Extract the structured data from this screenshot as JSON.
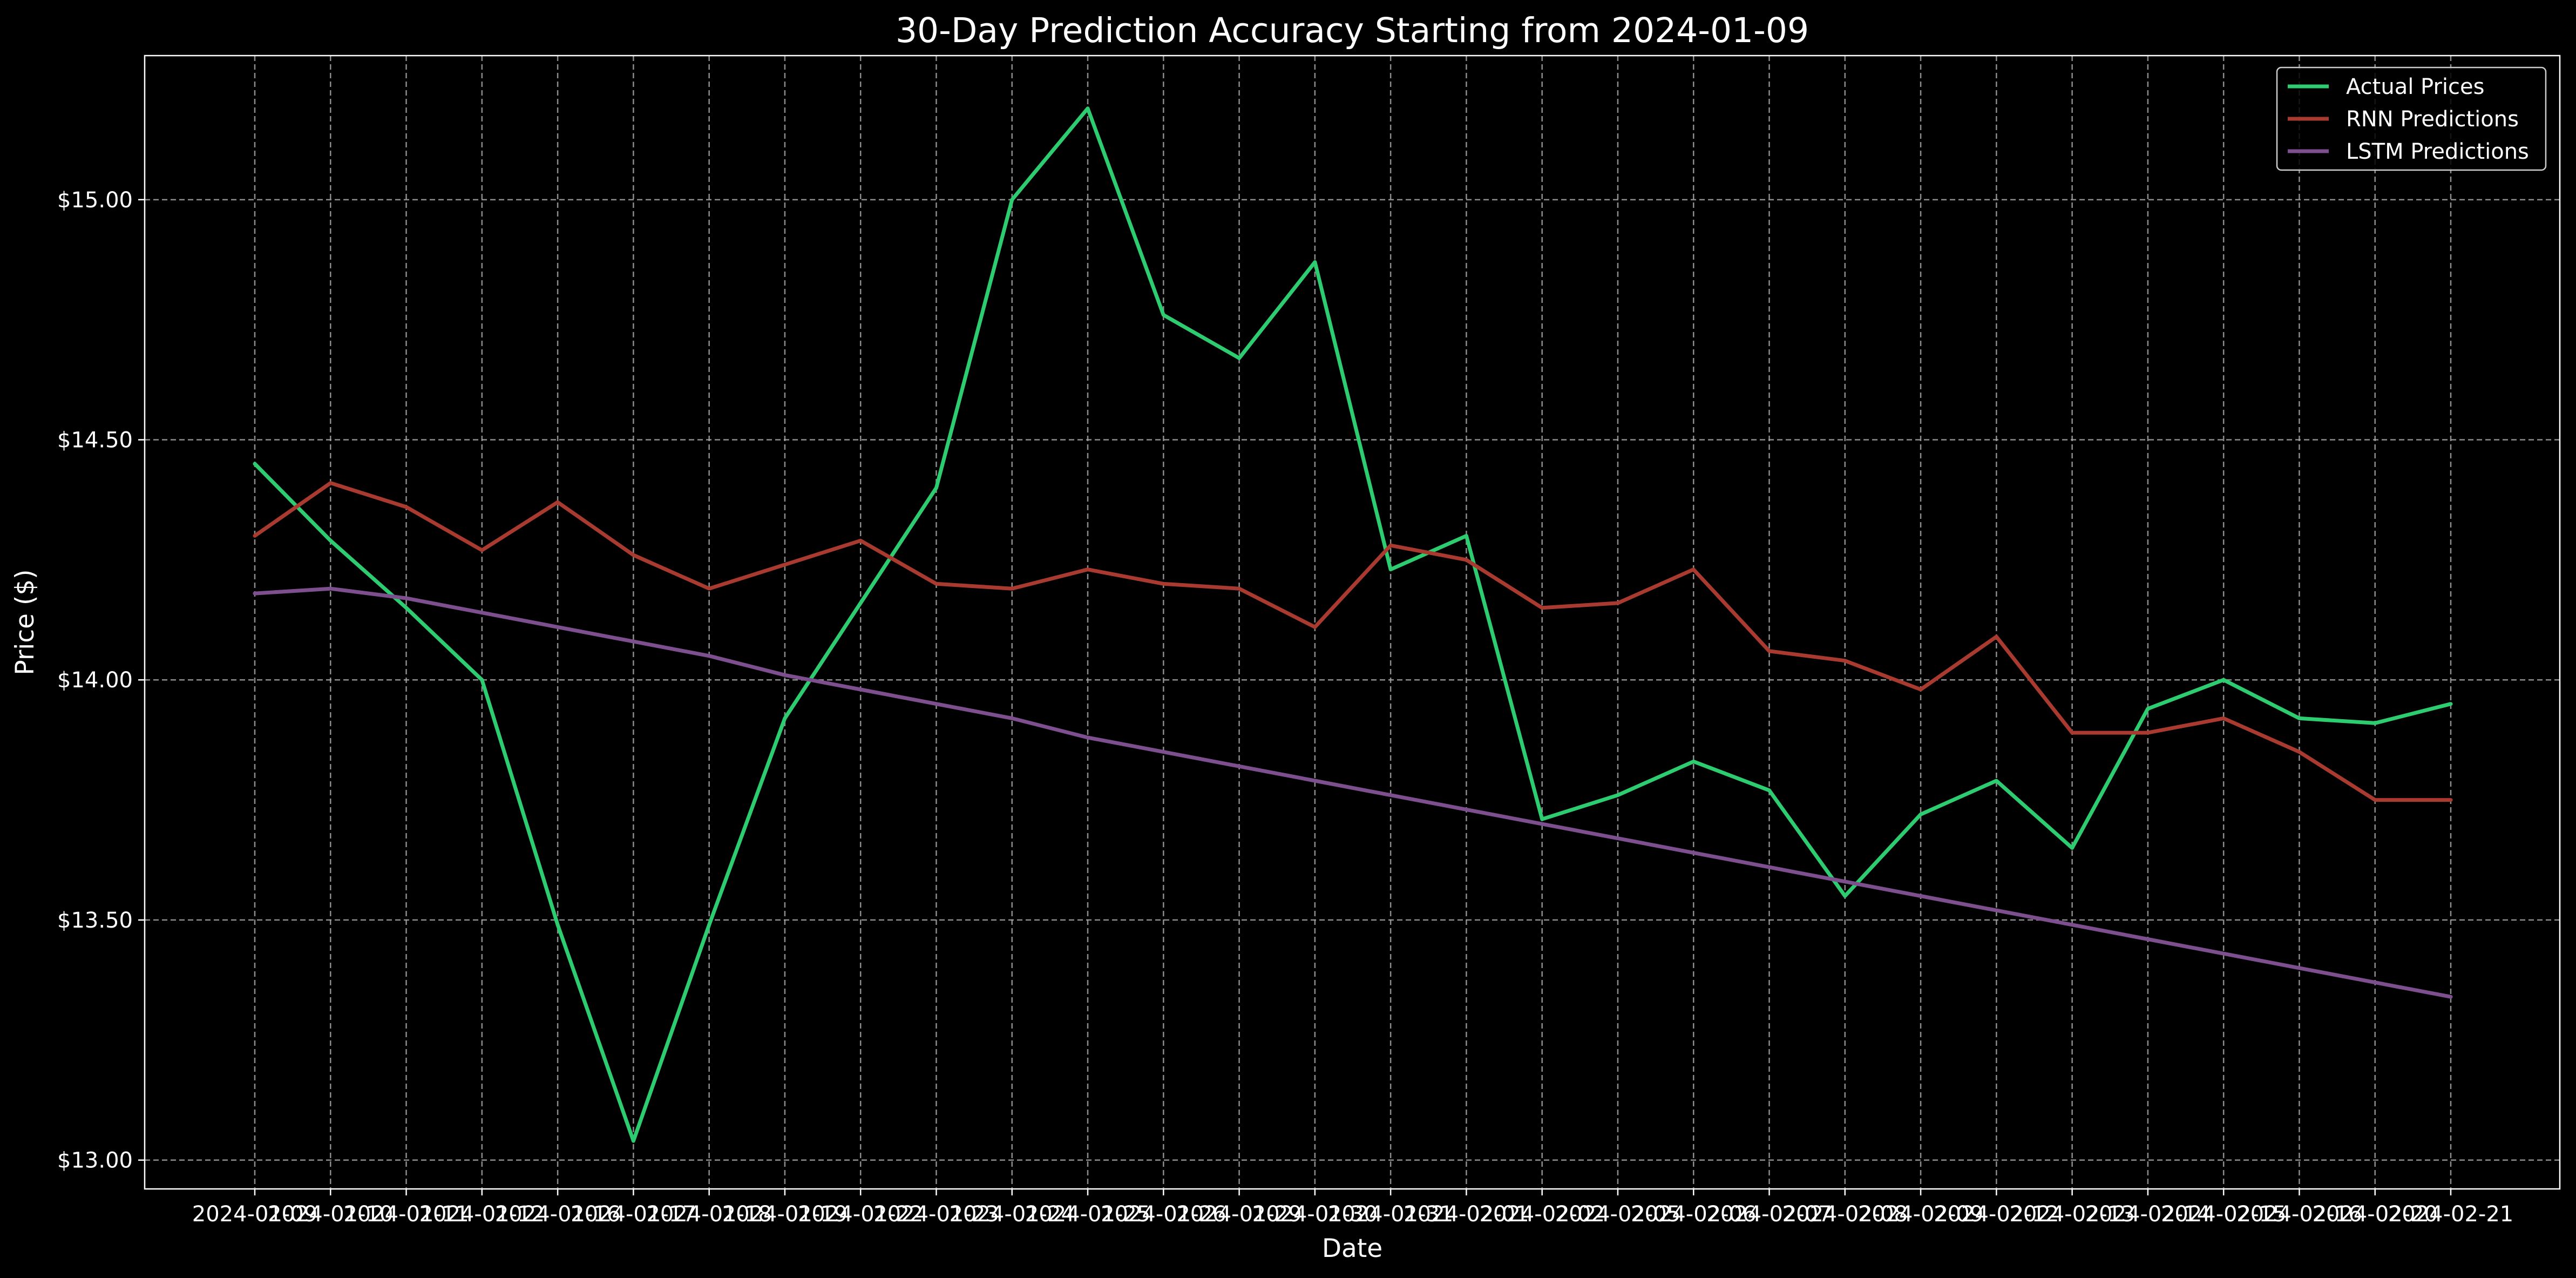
{
  "chart_data": {
    "type": "line",
    "title": "30-Day Prediction Accuracy Starting from 2024-01-09",
    "xlabel": "Date",
    "ylabel": "Price ($)",
    "x": [
      "2024-01-09",
      "2024-01-10",
      "2024-01-11",
      "2024-01-12",
      "2024-01-16",
      "2024-01-17",
      "2024-01-18",
      "2024-01-19",
      "2024-01-22",
      "2024-01-23",
      "2024-01-24",
      "2024-01-25",
      "2024-01-26",
      "2024-01-29",
      "2024-01-30",
      "2024-01-31",
      "2024-02-01",
      "2024-02-02",
      "2024-02-05",
      "2024-02-06",
      "2024-02-07",
      "2024-02-08",
      "2024-02-09",
      "2024-02-12",
      "2024-02-13",
      "2024-02-14",
      "2024-02-15",
      "2024-02-16",
      "2024-02-20",
      "2024-02-21"
    ],
    "y_ticks": [
      "$13.00",
      "$13.50",
      "$14.00",
      "$14.50",
      "$15.00"
    ],
    "ylim": [
      12.94,
      15.3
    ],
    "grid": true,
    "legend_position": "top-right",
    "series": [
      {
        "name": "Actual Prices",
        "color": "#2ecc71",
        "values": [
          14.45,
          14.29,
          14.15,
          14.0,
          13.49,
          13.04,
          13.49,
          13.92,
          14.16,
          14.4,
          15.0,
          15.19,
          14.76,
          14.67,
          14.87,
          14.23,
          14.3,
          13.71,
          13.76,
          13.83,
          13.77,
          13.55,
          13.72,
          13.79,
          13.65,
          13.94,
          14.0,
          13.92,
          13.91,
          13.95
        ]
      },
      {
        "name": "RNN Predictions",
        "color": "#a93a30",
        "values": [
          14.3,
          14.41,
          14.36,
          14.27,
          14.37,
          14.26,
          14.19,
          14.24,
          14.29,
          14.2,
          14.19,
          14.23,
          14.2,
          14.19,
          14.11,
          14.28,
          14.25,
          14.15,
          14.16,
          14.23,
          14.06,
          14.04,
          13.98,
          14.09,
          13.89,
          13.89,
          13.92,
          13.85,
          13.75,
          13.75
        ]
      },
      {
        "name": "LSTM Predictions",
        "color": "#7d4f8f",
        "values": [
          14.18,
          14.19,
          14.17,
          14.14,
          14.11,
          14.08,
          14.05,
          14.01,
          13.98,
          13.95,
          13.92,
          13.88,
          13.85,
          13.82,
          13.79,
          13.76,
          13.73,
          13.7,
          13.67,
          13.64,
          13.61,
          13.58,
          13.55,
          13.52,
          13.49,
          13.46,
          13.43,
          13.4,
          13.37,
          13.34
        ]
      }
    ]
  }
}
